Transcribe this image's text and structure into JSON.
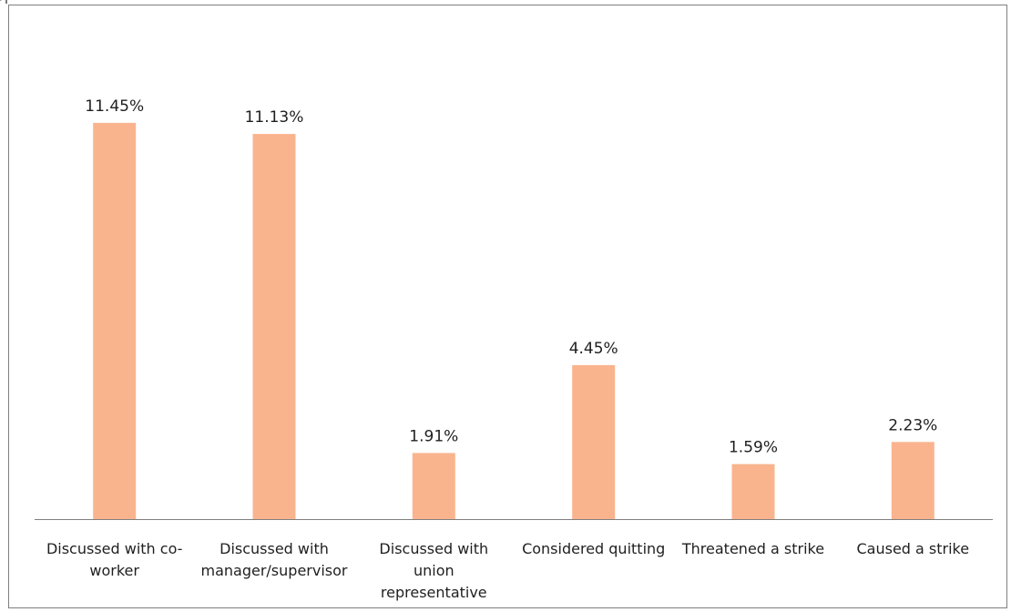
{
  "chart_data": {
    "type": "bar",
    "categories": [
      "Discussed with co-worker",
      "Discussed with manager/supervisor",
      "Discussed with union representative",
      "Considered quitting",
      "Threatened a strike",
      "Caused a strike"
    ],
    "category_lines": [
      [
        "Discussed with co-",
        "worker"
      ],
      [
        "Discussed with",
        "manager/supervisor"
      ],
      [
        "Discussed with",
        "union",
        "representative"
      ],
      [
        "Considered quitting"
      ],
      [
        "Threatened a strike"
      ],
      [
        "Caused a strike"
      ]
    ],
    "values": [
      11.45,
      11.13,
      1.91,
      4.45,
      1.59,
      2.23
    ],
    "data_labels": [
      "11.45%",
      "11.13%",
      "1.91%",
      "4.45%",
      "1.59%",
      "2.23%"
    ],
    "unit": "%",
    "title": "",
    "xlabel": "",
    "ylabel": "",
    "ylim": [
      0,
      12
    ],
    "grid": false,
    "legend": "none",
    "bar_color": "#F9B48E",
    "axis_color": "#7f7f7f"
  }
}
